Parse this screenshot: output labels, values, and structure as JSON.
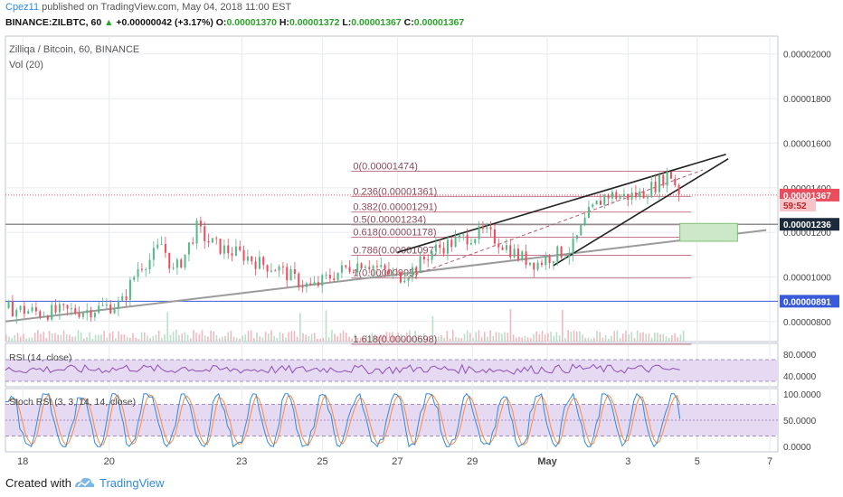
{
  "header": {
    "author": "Cpez11",
    "published": " published on TradingView.com, May 04, 2018 11:00 EST",
    "symbol": "BINANCE:ZILBTC, 60",
    "change_arrow": "▲",
    "change": "+0.00000042 (+3.17%)",
    "o_label": "O:",
    "o_value": "0.00001370",
    "h_label": "H:",
    "h_value": "0.00001372",
    "l_label": "L:",
    "l_value": "0.00001367",
    "c_label": "C:",
    "c_value": "0.00001367"
  },
  "legend": {
    "title": "Zilliqa / Bitcoin, 60, BINANCE",
    "volume": "Vol (20)"
  },
  "rsi_panel": {
    "label": "RSI (14, close)"
  },
  "stoch_panel": {
    "label": "Stoch RSI (3, 3, 14, 14, close)"
  },
  "footer": {
    "created": "Created with",
    "brand": "TradingView"
  },
  "colors": {
    "up": "#53b987",
    "down": "#eb4d5c",
    "fib": "#b55a6e",
    "blue": "#3a5bd9",
    "rsi": "#8e4fb3",
    "rsi_fill": "#e6d9f2",
    "stoch_k": "#2f8be0",
    "stoch_d": "#ff8a3d",
    "price_tag": "#eb4d5c",
    "axis_tag": "#1c2a3b"
  },
  "chart_data": {
    "type": "line",
    "subtype": "candlestick",
    "x_ticks": [
      "18",
      "20",
      "23",
      "25",
      "27",
      "29",
      "May",
      "3",
      "5",
      "7"
    ],
    "y_ticks": [
      "0.00002000",
      "0.00001800",
      "0.00001600",
      "0.00001400",
      "0.00001200",
      "0.00001000",
      "0.00000800"
    ],
    "ylim": [
      7.1e-06,
      2.08e-05
    ],
    "price_series": [
      {
        "x": 0,
        "close": 8.6e-06
      },
      {
        "x": 3,
        "close": 8.4e-06
      },
      {
        "x": 7,
        "close": 8.5e-06
      },
      {
        "x": 10,
        "close": 8.8e-06
      },
      {
        "x": 11.5,
        "close": 1.05e-05
      },
      {
        "x": 12.5,
        "close": 1.08e-05
      },
      {
        "x": 13.5,
        "close": 1.15e-05
      },
      {
        "x": 14.5,
        "close": 1.02e-05
      },
      {
        "x": 15.5,
        "close": 1.1e-05
      },
      {
        "x": 16.5,
        "close": 1.22e-05
      },
      {
        "x": 17.5,
        "close": 1.16e-05
      },
      {
        "x": 19,
        "close": 1.12e-05
      },
      {
        "x": 20.5,
        "close": 1.1e-05
      },
      {
        "x": 22,
        "close": 1.06e-05
      },
      {
        "x": 23.5,
        "close": 1.04e-05
      },
      {
        "x": 25,
        "close": 9.9e-06
      },
      {
        "x": 26.5,
        "close": 9.5e-06
      },
      {
        "x": 28,
        "close": 1e-05
      },
      {
        "x": 29.5,
        "close": 1.04e-05
      },
      {
        "x": 31,
        "close": 1.07e-05
      },
      {
        "x": 32.5,
        "close": 1.03e-05
      },
      {
        "x": 34,
        "close": 1e-05
      },
      {
        "x": 35.5,
        "close": 1.04e-05
      },
      {
        "x": 37,
        "close": 1.12e-05
      },
      {
        "x": 38.5,
        "close": 1.15e-05
      },
      {
        "x": 40,
        "close": 1.18e-05
      },
      {
        "x": 41.5,
        "close": 1.2e-05
      },
      {
        "x": 43,
        "close": 1.15e-05
      },
      {
        "x": 44.5,
        "close": 1.09e-05
      },
      {
        "x": 46,
        "close": 1.06e-05
      },
      {
        "x": 47.5,
        "close": 1.1e-05
      },
      {
        "x": 49,
        "close": 1.12e-05
      },
      {
        "x": 50.5,
        "close": 1.28e-05
      },
      {
        "x": 52,
        "close": 1.37e-05
      },
      {
        "x": 53.5,
        "close": 1.36e-05
      },
      {
        "x": 55,
        "close": 1.37e-05
      },
      {
        "x": 56.5,
        "close": 1.42e-05
      },
      {
        "x": 57.5,
        "close": 1.47e-05
      },
      {
        "x": 58.5,
        "close": 1.37e-05
      }
    ],
    "fib_levels": [
      {
        "label": "0(0.00001474)",
        "price": 1.474e-05
      },
      {
        "label": "0.236(0.00001361)",
        "price": 1.361e-05
      },
      {
        "label": "0.382(0.00001291)",
        "price": 1.291e-05
      },
      {
        "label": "0.5(0.00001234)",
        "price": 1.234e-05
      },
      {
        "label": "0.618(0.00001178)",
        "price": 1.178e-05
      },
      {
        "label": "0.786(0.00001097)",
        "price": 1.097e-05
      },
      {
        "label": "1(0.00000995)",
        "price": 9.95e-06
      },
      {
        "label": "1.618(0.00000698)",
        "price": 6.98e-06
      }
    ],
    "price_tags": [
      {
        "text": "0.00001367",
        "price": 1.367e-05,
        "style": "red"
      },
      {
        "text": "59:52",
        "price": 1.322e-05,
        "style": "redlight"
      },
      {
        "text": "0.00001236",
        "price": 1.236e-05,
        "style": "dark"
      },
      {
        "text": "0.00000891",
        "price": 8.91e-06,
        "style": "blue"
      }
    ],
    "horizontal_lines": [
      1.236e-05,
      8.91e-06
    ],
    "rsi": {
      "ylim": [
        20,
        100
      ],
      "y_ticks": [
        "80.0000",
        "40.0000"
      ],
      "upper": 70,
      "lower": 30
    },
    "stoch": {
      "ylim": [
        -10,
        110
      ],
      "y_ticks": [
        "100.0000",
        "50.0000",
        "0.0000"
      ],
      "upper": 80,
      "lower": 20
    }
  }
}
